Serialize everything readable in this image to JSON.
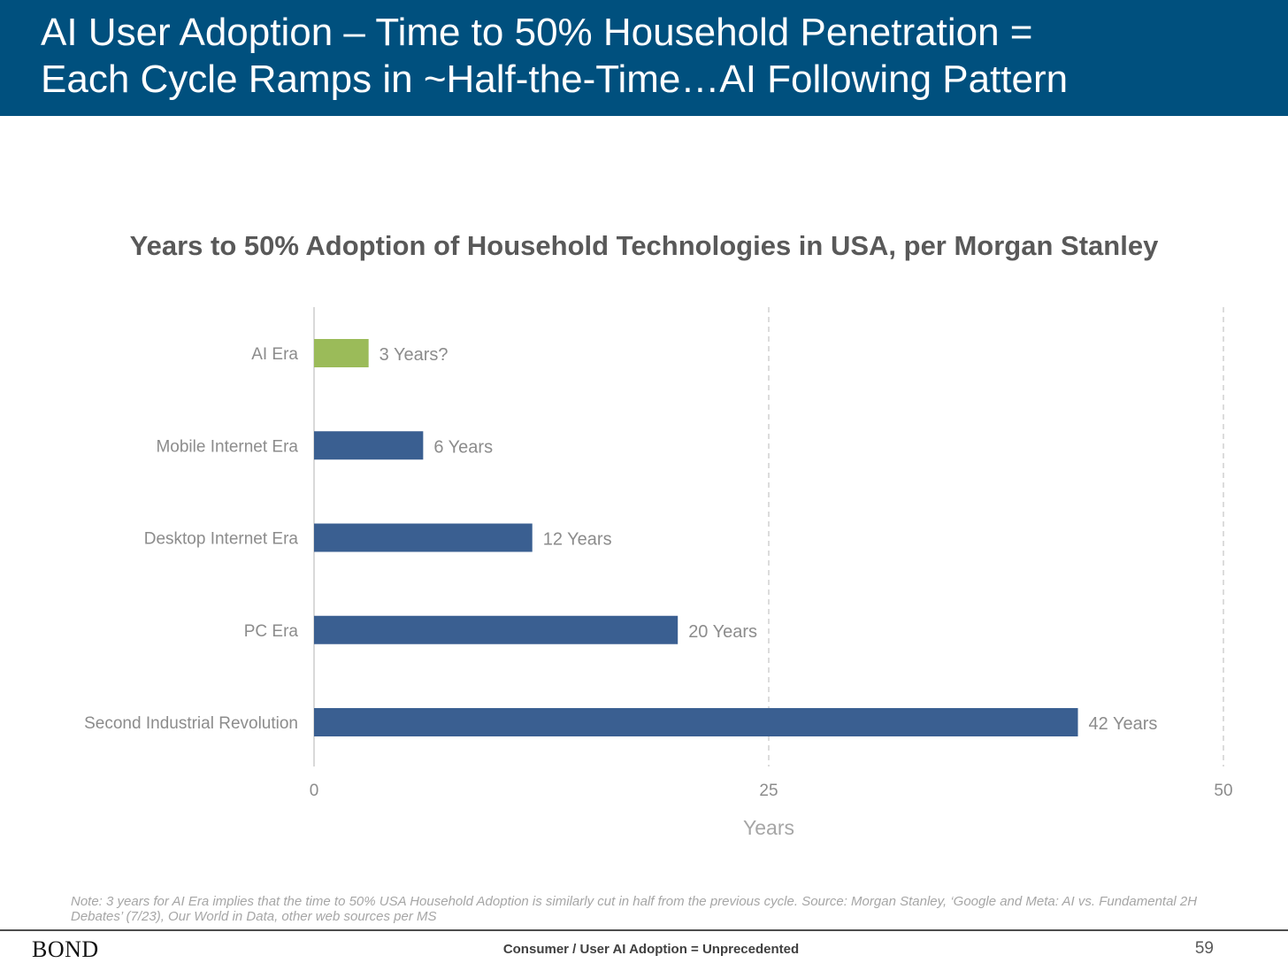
{
  "header": {
    "title_line_1": "AI User Adoption – Time to 50% Household Penetration =",
    "title_line_2": "Each Cycle Ramps in ~Half-the-Time…AI Following Pattern"
  },
  "chart_data": {
    "type": "bar",
    "orientation": "horizontal",
    "title": "Years to 50% Adoption of Household Technologies in USA, per Morgan Stanley",
    "xlabel": "Years",
    "ylabel": "",
    "categories": [
      "AI Era",
      "Mobile Internet Era",
      "Desktop Internet Era",
      "PC Era",
      "Second Industrial Revolution"
    ],
    "values": [
      3,
      6,
      12,
      20,
      42
    ],
    "data_labels": [
      "3 Years?",
      "6 Years",
      "12 Years",
      "20 Years",
      "42 Years"
    ],
    "bar_colors": [
      "#9bbb59",
      "#3a5f91",
      "#3a5f91",
      "#3a5f91",
      "#3a5f91"
    ],
    "xlim": [
      0,
      50
    ],
    "xticks": [
      0,
      25,
      50
    ],
    "xtick_labels": [
      "0",
      "25",
      "50"
    ],
    "grid": "vertical dashed"
  },
  "footer": {
    "note": "Note: 3 years for AI Era implies that the time to 50% USA Household Adoption is similarly cut in half from the previous cycle. Source: Morgan Stanley, ‘Google and Meta: AI vs. Fundamental 2H Debates’ (7/23), Our World in Data, other web sources per MS",
    "logo": "BOND",
    "center_text": "Consumer / User AI Adoption = Unprecedented",
    "page_number": "59"
  },
  "colors": {
    "header_bg": "#00507e",
    "bar_primary": "#3a5f91",
    "bar_highlight": "#9bbb59"
  }
}
